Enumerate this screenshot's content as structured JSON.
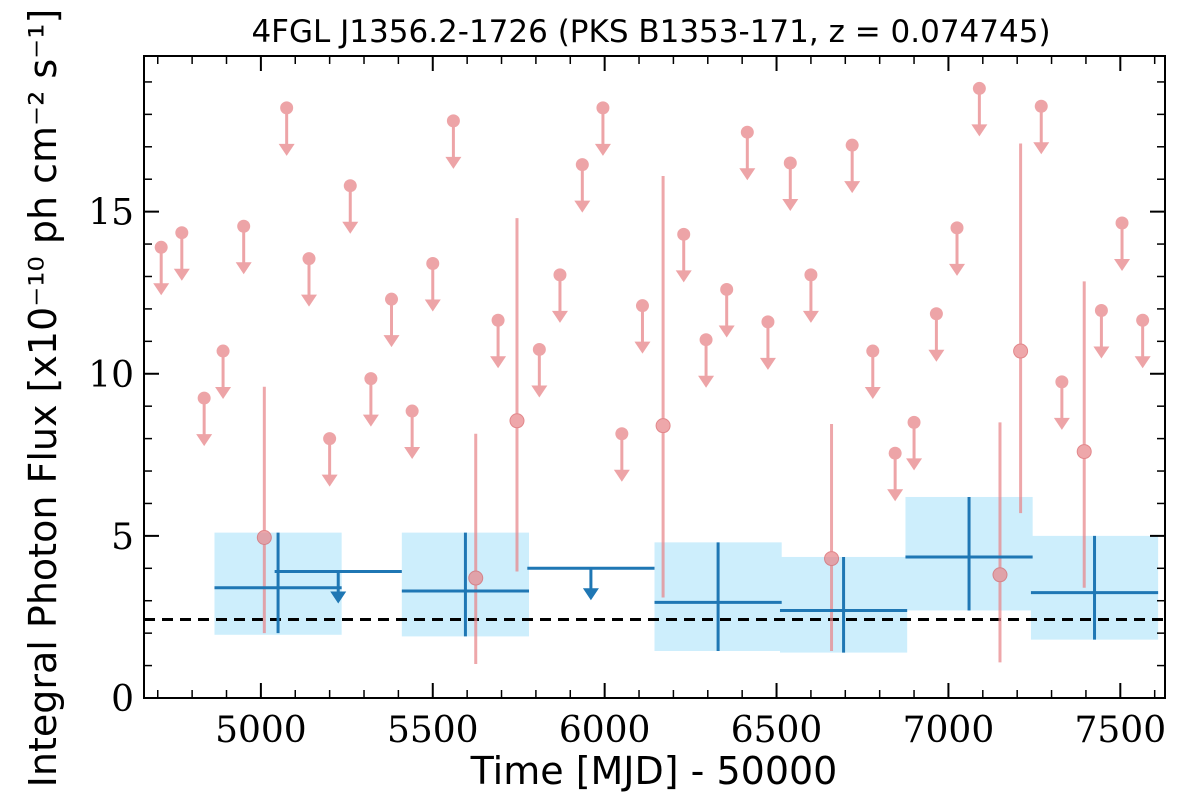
{
  "chart_data": {
    "type": "scatter",
    "title": "4FGL J1356.2-1726 (PKS B1353-171, z = 0.074745)",
    "xlabel": "Time [MJD] - 50000",
    "ylabel": "Integral Photon Flux [x10⁻¹⁰ ph cm⁻² s⁻¹]",
    "xlim": [
      4660,
      7630
    ],
    "ylim": [
      0,
      19.8
    ],
    "x_ticks": [
      "5000",
      "5500",
      "6000",
      "6500",
      "7000",
      "7500"
    ],
    "y_ticks": [
      "0",
      "5",
      "10",
      "15"
    ],
    "grid": false,
    "colors": {
      "short_bins": "#e8868a",
      "long_bins": "#1f77b4",
      "band": "#cdeefc",
      "reference": "#000000"
    },
    "reference_line": {
      "y": 2.42,
      "style": "dashed"
    },
    "long_bins": {
      "detections": [
        {
          "x": 5050,
          "xerr": 185,
          "y": 3.4,
          "ylo": 2.0,
          "yhi": 5.1,
          "band": [
            1.95,
            5.1
          ]
        },
        {
          "x": 5595,
          "xerr": 185,
          "y": 3.3,
          "ylo": 1.9,
          "yhi": 5.1,
          "band": [
            1.9,
            5.1
          ]
        },
        {
          "x": 6330,
          "xerr": 185,
          "y": 2.95,
          "ylo": 1.45,
          "yhi": 4.8,
          "band": [
            1.45,
            4.8
          ]
        },
        {
          "x": 6695,
          "xerr": 185,
          "y": 2.7,
          "ylo": 1.4,
          "yhi": 4.35,
          "band": [
            1.4,
            4.35
          ]
        },
        {
          "x": 7060,
          "xerr": 185,
          "y": 4.35,
          "ylo": 2.7,
          "yhi": 6.2,
          "band": [
            2.7,
            6.2
          ]
        },
        {
          "x": 7425,
          "xerr": 185,
          "y": 3.25,
          "ylo": 1.8,
          "yhi": 5.0,
          "band": [
            1.8,
            5.0
          ]
        }
      ],
      "upper_limits": [
        {
          "x": 5225,
          "xerr": 185,
          "y": 3.9
        },
        {
          "x": 5960,
          "xerr": 185,
          "y": 4.0
        }
      ]
    },
    "short_bins": {
      "detections": [
        {
          "x": 5010,
          "y": 4.95,
          "ylo": 2.0,
          "yhi": 9.6
        },
        {
          "x": 5625,
          "y": 3.7,
          "ylo": 1.05,
          "yhi": 8.15
        },
        {
          "x": 5745,
          "y": 8.55,
          "ylo": 3.9,
          "yhi": 14.8
        },
        {
          "x": 6170,
          "y": 8.4,
          "ylo": 3.1,
          "yhi": 16.1
        },
        {
          "x": 6660,
          "y": 4.3,
          "ylo": 1.45,
          "yhi": 8.45
        },
        {
          "x": 7150,
          "y": 3.8,
          "ylo": 1.1,
          "yhi": 8.5
        },
        {
          "x": 7210,
          "y": 10.7,
          "ylo": 5.7,
          "yhi": 17.1
        },
        {
          "x": 7395,
          "y": 7.6,
          "ylo": 3.4,
          "yhi": 12.85
        }
      ],
      "upper_limits": [
        {
          "x": 4710,
          "y": 13.9
        },
        {
          "x": 4770,
          "y": 14.35
        },
        {
          "x": 4835,
          "y": 9.25
        },
        {
          "x": 4890,
          "y": 10.7
        },
        {
          "x": 4950,
          "y": 14.55
        },
        {
          "x": 5075,
          "y": 18.2
        },
        {
          "x": 5140,
          "y": 13.55
        },
        {
          "x": 5200,
          "y": 8.0
        },
        {
          "x": 5260,
          "y": 15.8
        },
        {
          "x": 5320,
          "y": 9.85
        },
        {
          "x": 5380,
          "y": 12.3
        },
        {
          "x": 5440,
          "y": 8.85
        },
        {
          "x": 5500,
          "y": 13.4
        },
        {
          "x": 5560,
          "y": 17.8
        },
        {
          "x": 5690,
          "y": 11.65
        },
        {
          "x": 5810,
          "y": 10.75
        },
        {
          "x": 5870,
          "y": 13.05
        },
        {
          "x": 5935,
          "y": 16.45
        },
        {
          "x": 5995,
          "y": 18.2
        },
        {
          "x": 6050,
          "y": 8.15
        },
        {
          "x": 6110,
          "y": 12.1
        },
        {
          "x": 6230,
          "y": 14.3
        },
        {
          "x": 6295,
          "y": 11.05
        },
        {
          "x": 6355,
          "y": 12.6
        },
        {
          "x": 6415,
          "y": 17.45
        },
        {
          "x": 6475,
          "y": 11.6
        },
        {
          "x": 6540,
          "y": 16.5
        },
        {
          "x": 6600,
          "y": 13.05
        },
        {
          "x": 6720,
          "y": 17.05
        },
        {
          "x": 6780,
          "y": 10.7
        },
        {
          "x": 6845,
          "y": 7.55
        },
        {
          "x": 6900,
          "y": 8.5
        },
        {
          "x": 6965,
          "y": 11.85
        },
        {
          "x": 7025,
          "y": 14.5
        },
        {
          "x": 7090,
          "y": 18.8
        },
        {
          "x": 7270,
          "y": 18.25
        },
        {
          "x": 7330,
          "y": 9.75
        },
        {
          "x": 7445,
          "y": 11.95
        },
        {
          "x": 7505,
          "y": 14.65
        },
        {
          "x": 7565,
          "y": 11.65
        }
      ]
    }
  }
}
